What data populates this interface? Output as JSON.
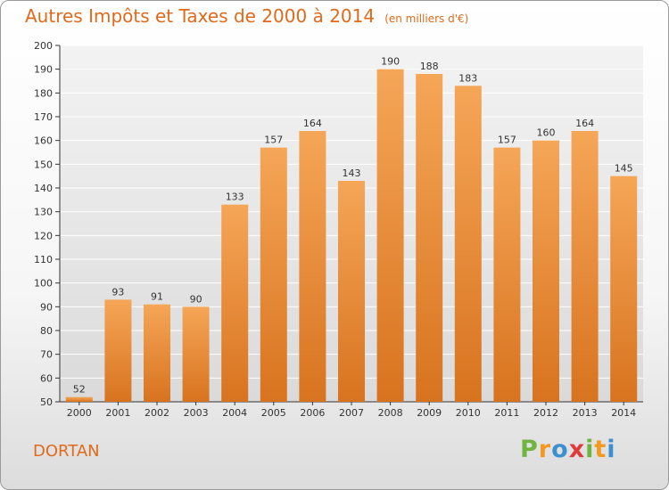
{
  "title": "Autres Impôts et Taxes de 2000 à 2014",
  "subtitle": "(en milliers d'€)",
  "commune": "DORTAN",
  "logo": "Proxiti",
  "colors": {
    "accent": "#e06a1c",
    "bar_top": "#f5a657",
    "bar_bottom": "#d8731f"
  },
  "chart_data": {
    "type": "bar",
    "categories": [
      "2000",
      "2001",
      "2002",
      "2003",
      "2004",
      "2005",
      "2006",
      "2007",
      "2008",
      "2009",
      "2010",
      "2011",
      "2012",
      "2013",
      "2014"
    ],
    "values": [
      52,
      93,
      91,
      90,
      133,
      157,
      164,
      143,
      190,
      188,
      183,
      157,
      160,
      164,
      145
    ],
    "ylim": [
      50,
      200
    ],
    "yticks": [
      50,
      60,
      70,
      80,
      90,
      100,
      110,
      120,
      130,
      140,
      150,
      160,
      170,
      180,
      190,
      200
    ],
    "grid": true
  }
}
